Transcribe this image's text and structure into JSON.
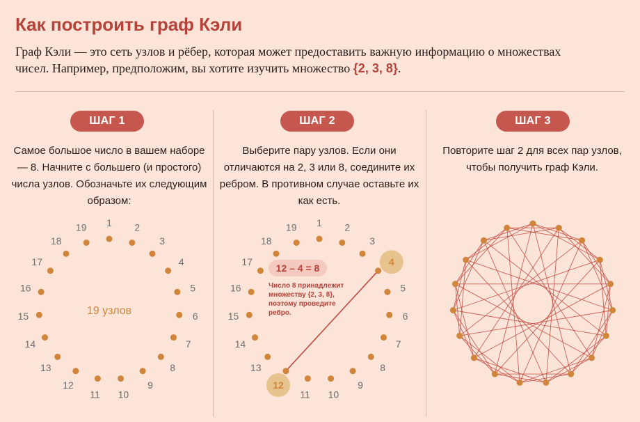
{
  "header": {
    "title": "Как построить граф Кэли",
    "intro_text": "Граф Кэли — это сеть узлов и рёбер, которая может предоставить важную информацию о множествах чисел. Например, предположим, вы хотите изучить множество ",
    "intro_set": "{2, 3, 8}",
    "intro_end": "."
  },
  "steps": [
    {
      "label": "ШАГ 1",
      "text": "Самое большое число в вашем наборе — 8. Начните с большего (и простого) числа узлов. Обозначьте их следующим образом:"
    },
    {
      "label": "ШАГ 2",
      "text": "Выберите пару узлов. Если они отличаются на 2, 3 или 8, соедините их ребром. В противном случае оставьте их как есть."
    },
    {
      "label": "ШАГ 3",
      "text": "Повторите шаг 2 для всех пар узлов, чтобы получить граф Кэли."
    }
  ],
  "step1": {
    "center_label": "19 узлов"
  },
  "step2": {
    "equation": "12 – 4 = 8",
    "note_lines": [
      "Число 8 принадлежит",
      "множеству {2, 3, 8},",
      "поэтому проведите",
      "ребро."
    ],
    "highlight_nodes": [
      "4",
      "12"
    ]
  },
  "node_labels": [
    "1",
    "2",
    "3",
    "4",
    "5",
    "6",
    "7",
    "8",
    "9",
    "10",
    "11",
    "12",
    "13",
    "14",
    "15",
    "16",
    "17",
    "18",
    "19"
  ],
  "differences": [
    2,
    3,
    8
  ],
  "node_count": 19,
  "colors": {
    "accent": "#b5433a",
    "node": "#d0853a",
    "edge": "#c04a40",
    "highlight": "#e7c38e",
    "background": "#fde4d8"
  }
}
